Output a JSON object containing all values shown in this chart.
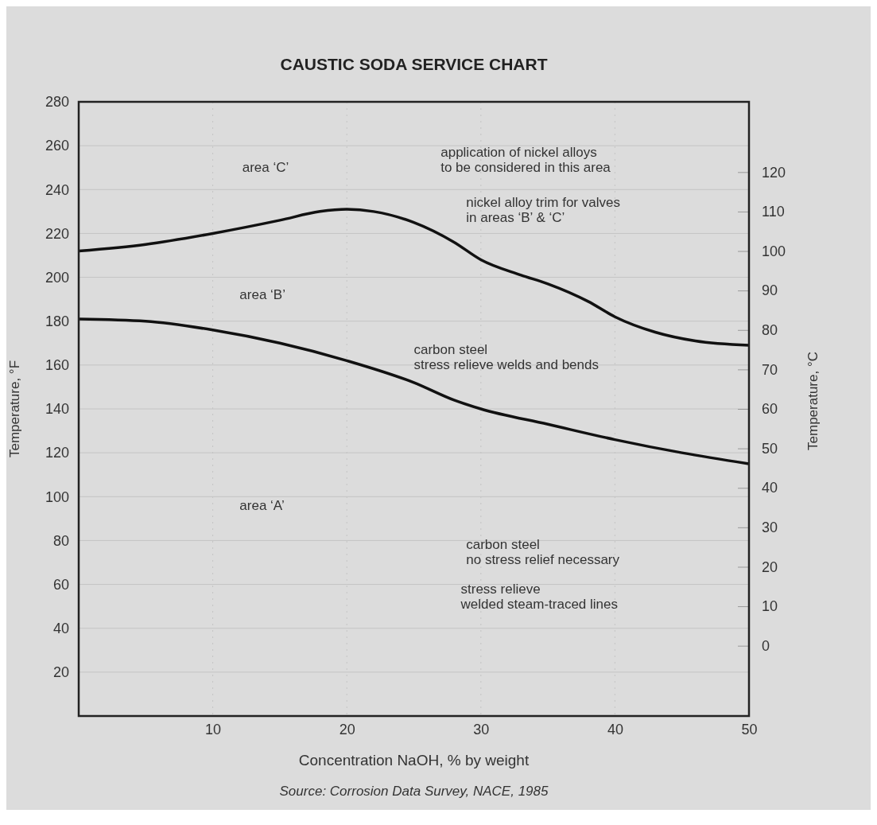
{
  "chart_data": {
    "type": "line",
    "title": "CAUSTIC SODA SERVICE CHART",
    "xlabel": "Concentration NaOH, % by weight",
    "ylabel": "Temperature, °F",
    "y2label": "Temperature, °C",
    "xlim": [
      0,
      50
    ],
    "xticks": [
      10,
      20,
      30,
      40,
      50
    ],
    "ylim": [
      0,
      280
    ],
    "yticks": [
      20,
      40,
      60,
      80,
      100,
      120,
      140,
      160,
      180,
      200,
      220,
      240,
      260,
      280
    ],
    "y2lim": [
      -17.8,
      137.8
    ],
    "y2ticks": [
      0,
      10,
      20,
      30,
      40,
      50,
      60,
      70,
      80,
      90,
      100,
      110,
      120
    ],
    "grid": true,
    "line_style": "solid",
    "marker": "none",
    "series": [
      {
        "color": "#111111",
        "x": [
          0,
          5,
          10,
          15,
          18,
          20,
          22,
          25,
          28,
          30,
          33,
          35,
          38,
          40,
          43,
          46,
          50
        ],
        "values": [
          212,
          215,
          220,
          226,
          230,
          231,
          230,
          225,
          216,
          208,
          201,
          197,
          189,
          182,
          175,
          171,
          169
        ]
      },
      {
        "color": "#111111",
        "x": [
          0,
          5,
          10,
          15,
          20,
          25,
          28,
          30,
          35,
          40,
          45,
          50
        ],
        "values": [
          181,
          180,
          176,
          170,
          162,
          152,
          144,
          140,
          133,
          126,
          120,
          115
        ]
      }
    ],
    "annotations": [
      "area ‘C’",
      "application of nickel alloys\nto be considered in this area",
      "nickel alloy trim for valves\nin areas ‘B’ & ‘C’",
      "area ‘B’",
      "carbon steel\nstress relieve welds and bends",
      "area ‘A’",
      "carbon steel\nno stress relief necessary",
      "stress relieve\nwelded steam-traced lines",
      "Source: Corrosion Data Survey, NACE, 1985"
    ]
  }
}
